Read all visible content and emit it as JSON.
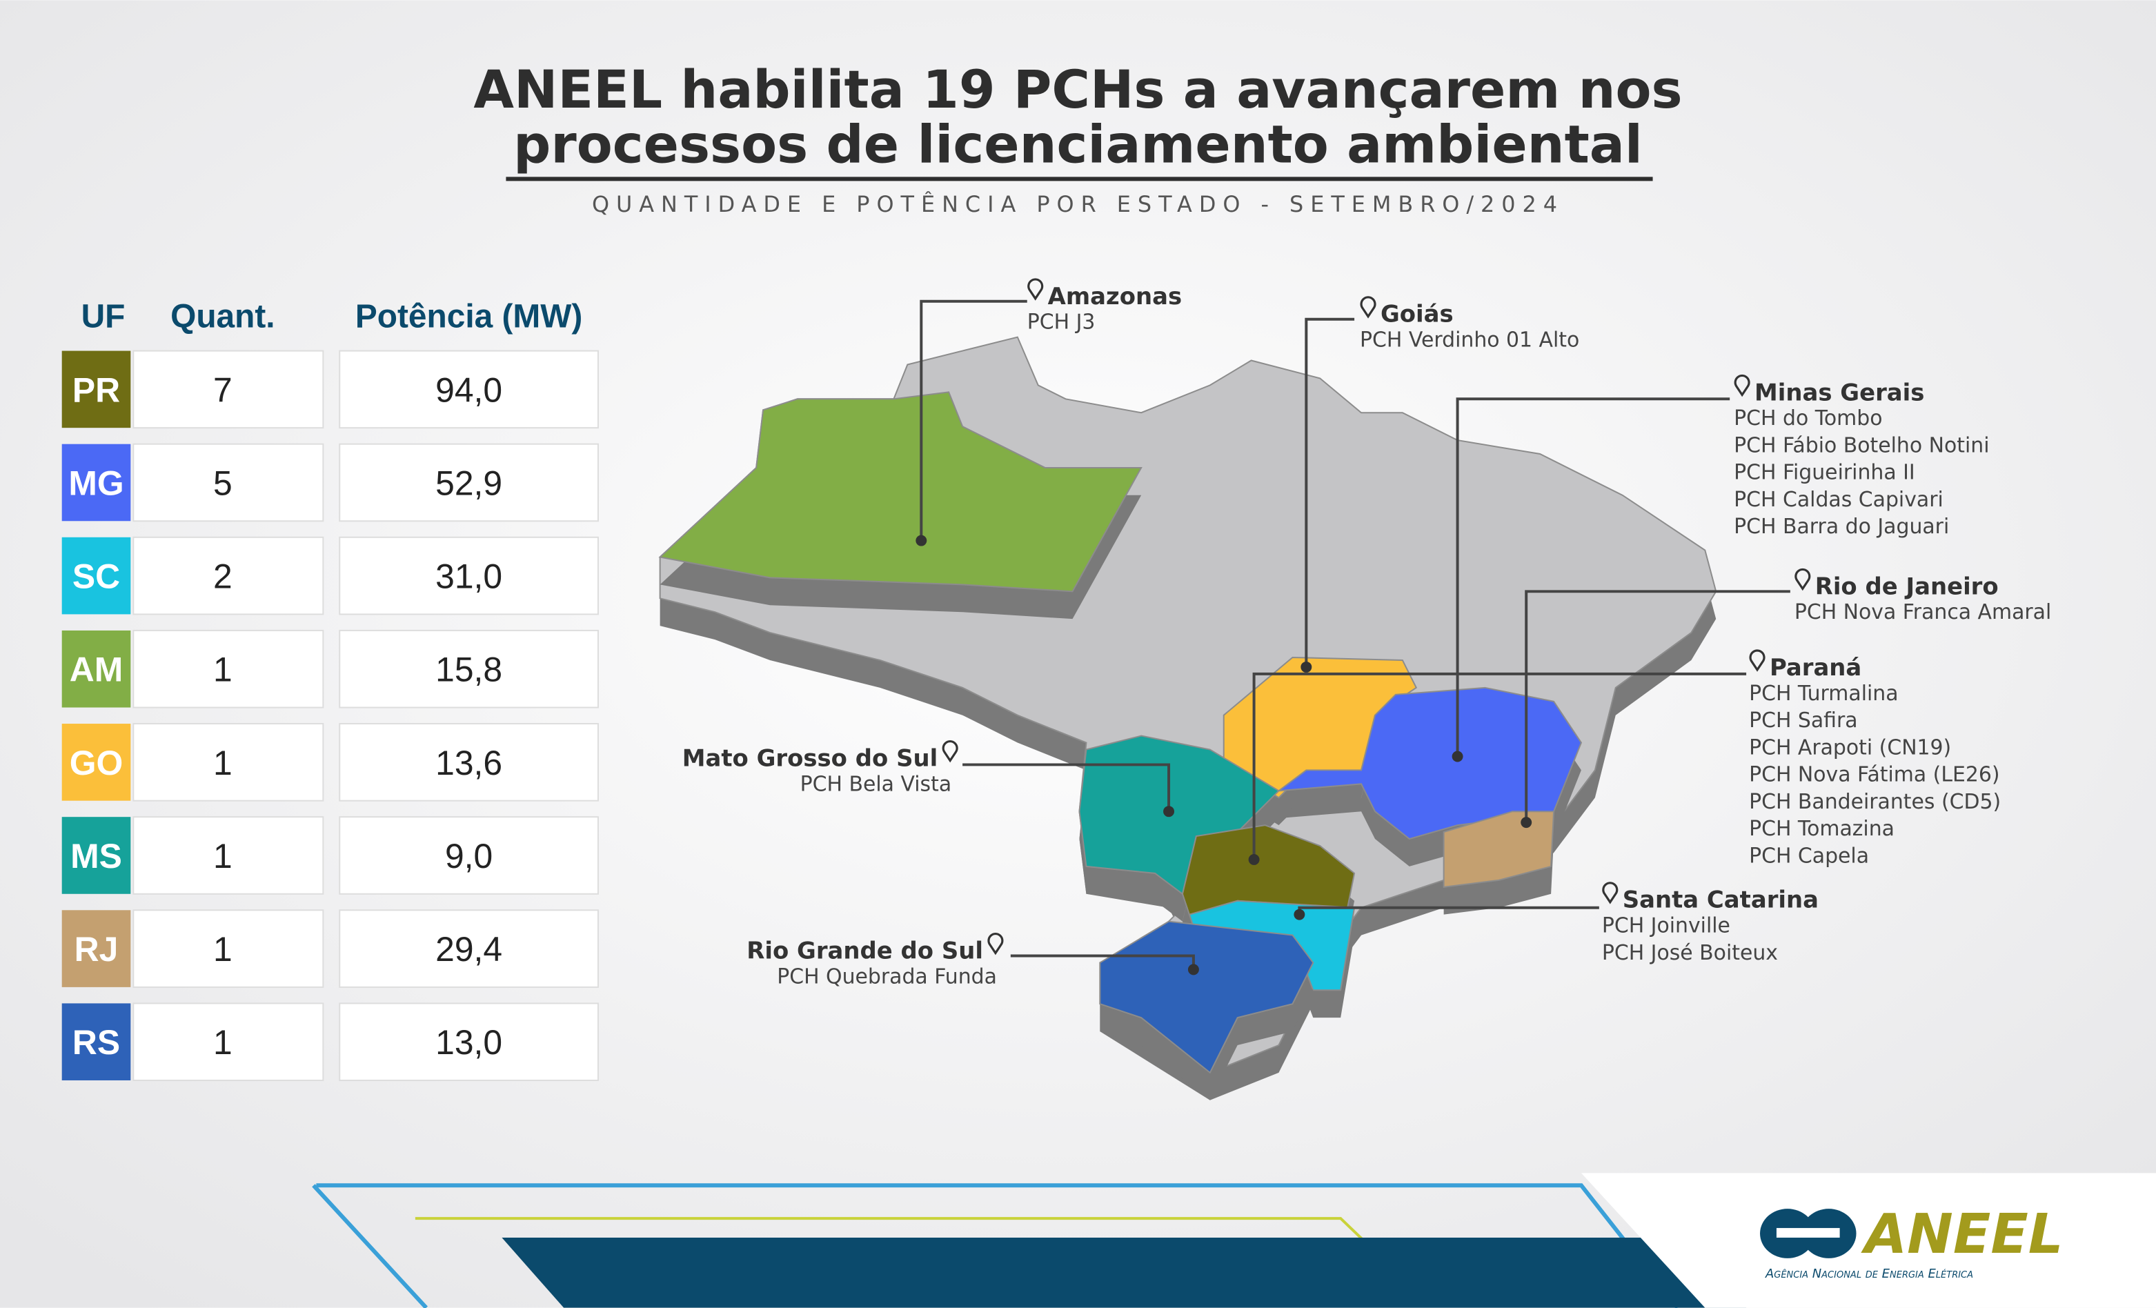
{
  "header": {
    "title_lines": [
      "ANEEL habilita 19 PCHs a avançarem nos",
      "processos de licenciamento ambiental"
    ],
    "subtitle": "QUANTIDADE E POTÊNCIA POR ESTADO - SETEMBRO/2024"
  },
  "table": {
    "columns": [
      "UF",
      "Quant.",
      "Potência (MW)"
    ],
    "rows": [
      [
        "PR",
        "7",
        "94,0"
      ],
      [
        "MG",
        "5",
        "52,9"
      ],
      [
        "SC",
        "2",
        "31,0"
      ],
      [
        "AM",
        "1",
        "15,8"
      ],
      [
        "GO",
        "1",
        "13,6"
      ],
      [
        "MS",
        "1",
        "9,0"
      ],
      [
        "RJ",
        "1",
        "29,4"
      ],
      [
        "RS",
        "1",
        "13,0"
      ]
    ]
  },
  "map_labels": [
    {
      "state": "Amazonas",
      "plants": [
        "PCH J3"
      ]
    },
    {
      "state": "Goiás",
      "plants": [
        "PCH Verdinho 01 Alto"
      ]
    },
    {
      "state": "Minas Gerais",
      "plants": [
        "PCH do Tombo",
        "PCH Fábio Botelho Notini",
        "PCH Figueirinha II",
        "PCH Caldas Capivari",
        "PCH Barra do Jaguari"
      ]
    },
    {
      "state": "Rio de Janeiro",
      "plants": [
        "PCH Nova Franca Amaral"
      ]
    },
    {
      "state": "Paraná",
      "plants": [
        "PCH Turmalina",
        "PCH Safira",
        "PCH Arapoti (CN19)",
        "PCH Nova Fátima (LE26)",
        "PCH Bandeirantes (CD5)",
        "PCH Tomazina",
        "PCH Capela"
      ]
    },
    {
      "state": "Mato Grosso do Sul",
      "plants": [
        "PCH Bela Vista"
      ]
    },
    {
      "state": "Santa Catarina",
      "plants": [
        "PCH Joinville",
        "PCH José Boiteux"
      ]
    },
    {
      "state": "Rio Grande do Sul",
      "plants": [
        "PCH Quebrada Funda"
      ]
    }
  ],
  "logo": {
    "name": "ANEEL",
    "tagline": "Agência Nacional de Energia Elétrica"
  }
}
